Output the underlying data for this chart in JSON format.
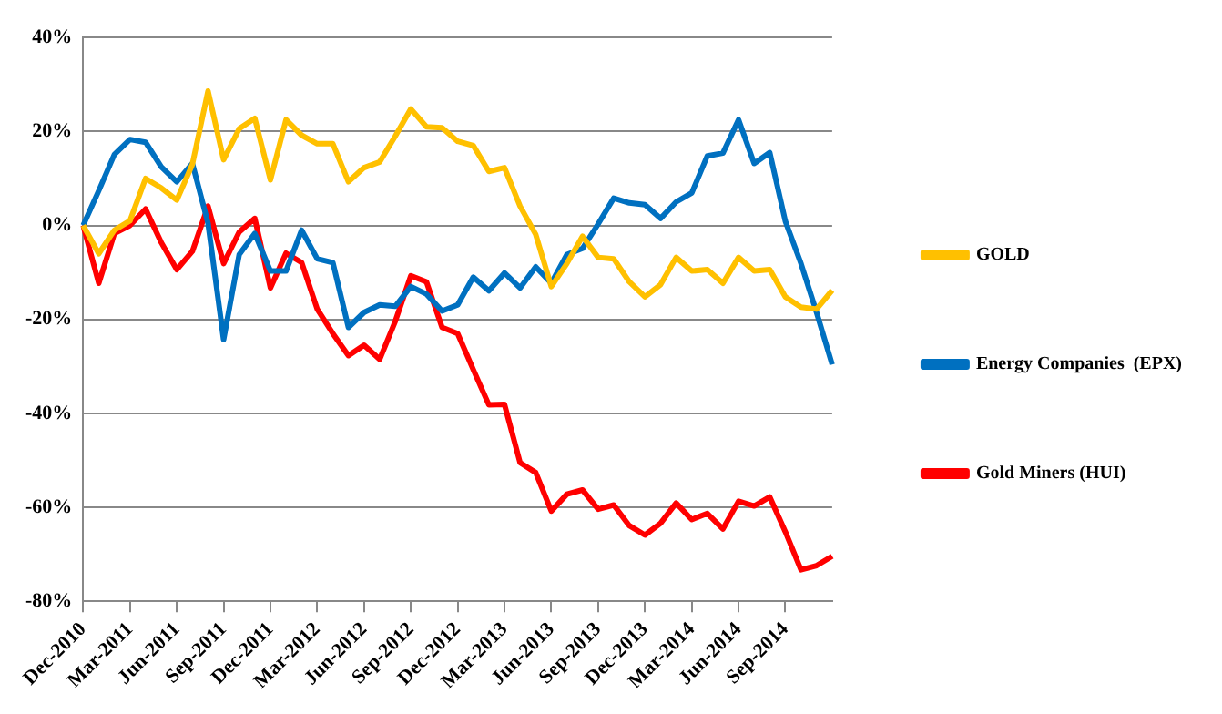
{
  "chart_data": {
    "type": "line",
    "categories": [
      "Dec-2010",
      null,
      null,
      "Mar-2011",
      null,
      null,
      "Jun-2011",
      null,
      null,
      "Sep-2011",
      null,
      null,
      "Dec-2011",
      null,
      null,
      "Mar-2012",
      null,
      null,
      "Jun-2012",
      null,
      null,
      "Sep-2012",
      null,
      null,
      "Dec-2012",
      null,
      null,
      "Mar-2013",
      null,
      null,
      "Jun-2013",
      null,
      null,
      "Sep-2013",
      null,
      null,
      "Dec-2013",
      null,
      null,
      "Mar-2014",
      null,
      null,
      "Jun-2014",
      null,
      null,
      "Sep-2014",
      null,
      null,
      null
    ],
    "series": [
      {
        "name": "GOLD",
        "color": "#ffc000",
        "values": [
          0,
          -6,
          -1,
          1,
          10,
          8,
          5.4,
          13,
          28.6,
          14,
          20.6,
          22.8,
          9.7,
          22.5,
          19.2,
          17.4,
          17.4,
          9.3,
          12.3,
          13.5,
          19,
          24.8,
          21,
          20.8,
          17.9,
          17,
          11.5,
          12.3,
          4.1,
          -1.9,
          -13,
          -8.1,
          -2.3,
          -6.8,
          -7.1,
          -12,
          -15.2,
          -12.6,
          -6.8,
          -9.7,
          -9.4,
          -12.3,
          -6.8,
          -9.7,
          -9.4,
          -15.2,
          -17.4,
          -17.8,
          -13.8
        ]
      },
      {
        "name": "Energy Companies  (EPX)",
        "color": "#0070c0",
        "values": [
          0,
          7.4,
          15.1,
          18.3,
          17.7,
          12.5,
          9.3,
          13.2,
          0.5,
          -24.3,
          -6.2,
          -1.7,
          -9.7,
          -9.7,
          -1,
          -7.1,
          -7.9,
          -21.7,
          -18.5,
          -16.9,
          -17.2,
          -13,
          -14.6,
          -18.2,
          -16.9,
          -11,
          -13.9,
          -10.1,
          -13.3,
          -8.8,
          -12.3,
          -6.2,
          -4.9,
          0.3,
          5.8,
          4.8,
          4.4,
          1.5,
          5,
          6.9,
          14.8,
          15.4,
          22.5,
          13.2,
          15.5,
          0.9,
          -8.1,
          -18.5,
          -29.6
        ]
      },
      {
        "name": "Gold Miners (HUI)",
        "color": "#ff0000",
        "values": [
          0,
          -12.3,
          -1.7,
          0,
          3.5,
          -3.6,
          -9.4,
          -5.5,
          4.1,
          -8.1,
          -1.4,
          1.5,
          -13.3,
          -5.9,
          -7.9,
          -17.8,
          -23,
          -27.7,
          -25.5,
          -28.5,
          -20.4,
          -10.7,
          -12,
          -21.7,
          -23,
          -30.7,
          -38.2,
          -38.1,
          -50.5,
          -52.6,
          -60.8,
          -57.2,
          -56.3,
          -60.4,
          -59.5,
          -63.9,
          -65.9,
          -63.4,
          -59.1,
          -62.6,
          -61.3,
          -64.6,
          -58.7,
          -59.7,
          -57.8,
          -65.2,
          -73.3,
          -72.4,
          -70.4
        ]
      }
    ],
    "ylim": [
      -80,
      40
    ],
    "yticks": [
      {
        "value": -80,
        "label": "-80%"
      },
      {
        "value": -60,
        "label": "-60%"
      },
      {
        "value": -40,
        "label": "-40%"
      },
      {
        "value": -20,
        "label": "-20%"
      },
      {
        "value": 0,
        "label": "0%"
      },
      {
        "value": 20,
        "label": "20%"
      },
      {
        "value": 40,
        "label": "40%"
      }
    ],
    "grid": "y",
    "legend": "right",
    "marker": "none",
    "line_style": "solid"
  }
}
